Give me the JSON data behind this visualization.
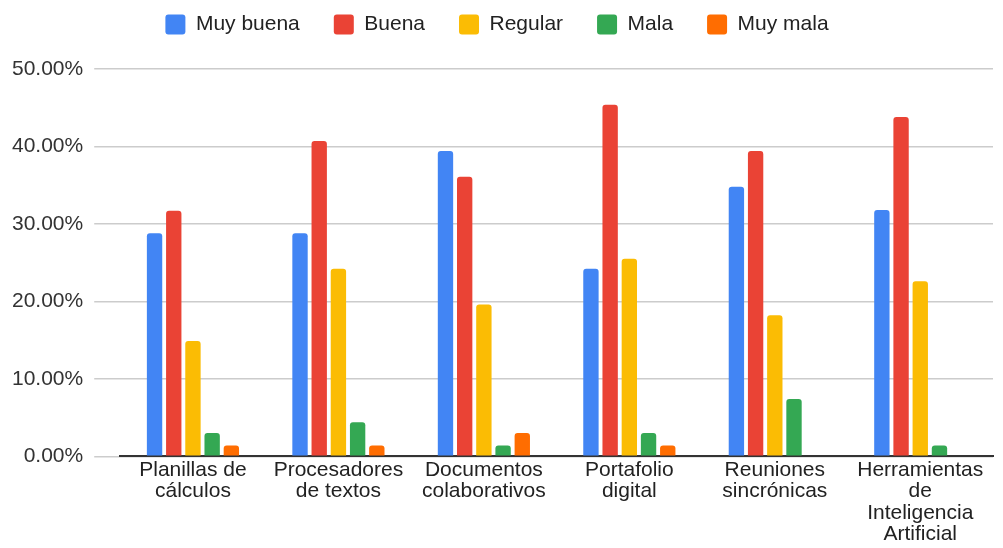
{
  "chart_data": {
    "type": "bar",
    "categories": [
      "Planillas de cálculos",
      "Procesadores de textos",
      "Documentos colaborativos",
      "Portafolio digital",
      "Reuniones sincrónicas",
      "Herramientas de Inteligencia Artificial"
    ],
    "series": [
      {
        "name": "Muy buena",
        "color": "#4285f4",
        "values": [
          28.8,
          28.8,
          39.4,
          24.2,
          34.8,
          31.8
        ]
      },
      {
        "name": "Buena",
        "color": "#ea4335",
        "values": [
          31.7,
          40.7,
          36.1,
          45.4,
          39.4,
          43.8
        ]
      },
      {
        "name": "Regular",
        "color": "#fbbc04",
        "values": [
          14.9,
          24.2,
          19.6,
          25.5,
          18.2,
          22.6
        ]
      },
      {
        "name": "Mala",
        "color": "#34a853",
        "values": [
          3.0,
          4.4,
          1.4,
          3.0,
          7.4,
          1.4
        ]
      },
      {
        "name": "Muy mala",
        "color": "#ff6d01",
        "values": [
          1.4,
          1.4,
          3.0,
          1.4,
          null,
          null
        ]
      }
    ],
    "ylim": [
      0,
      50
    ],
    "yticks": [
      {
        "value": 0,
        "label": "0.00%"
      },
      {
        "value": 10,
        "label": "10.00%"
      },
      {
        "value": 20,
        "label": "20.00%"
      },
      {
        "value": 30,
        "label": "30.00%"
      },
      {
        "value": 40,
        "label": "40.00%"
      },
      {
        "value": 50,
        "label": "50.00%"
      }
    ],
    "grid": "y",
    "legend": "top"
  }
}
